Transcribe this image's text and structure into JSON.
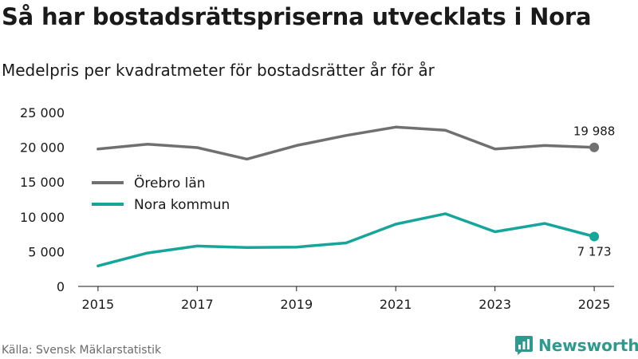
{
  "title": "Så har bostadsrättspriserna utvecklats i Nora",
  "subtitle": "Medelpris per kvadratmeter för bostadsrätter år för år",
  "source": "Källa: Svensk Mäklarstatistik",
  "brand": {
    "name": "Newsworthy",
    "logo_icon": "newsworthy-chart-icon",
    "color": "#2e9a8f"
  },
  "chart_data": {
    "type": "line",
    "title": "Så har bostadsrättspriserna utvecklats i Nora",
    "subtitle": "Medelpris per kvadratmeter för bostadsrätter år för år",
    "xlabel": "",
    "ylabel": "",
    "x": [
      2015,
      2016,
      2017,
      2018,
      2019,
      2020,
      2021,
      2022,
      2023,
      2024,
      2025
    ],
    "xlim": [
      2014.6,
      2025.4
    ],
    "ylim": [
      0,
      25000
    ],
    "x_ticks": [
      2015,
      2017,
      2019,
      2021,
      2023,
      2025
    ],
    "x_tick_labels": [
      "2015",
      "2017",
      "2019",
      "2021",
      "2023",
      "2025"
    ],
    "y_ticks": [
      0,
      5000,
      10000,
      15000,
      20000,
      25000
    ],
    "y_tick_labels": [
      "0",
      "5 000",
      "10 000",
      "15 000",
      "20 000",
      "25 000"
    ],
    "grid": false,
    "legend_position": "left",
    "series": [
      {
        "name": "Örebro län",
        "color": "#707070",
        "values": [
          19750,
          20450,
          19950,
          18300,
          20250,
          21700,
          22900,
          22450,
          19750,
          20250,
          19988
        ],
        "end_label": "19 988"
      },
      {
        "name": "Nora kommun",
        "color": "#16a59a",
        "values": [
          2950,
          4800,
          5800,
          5600,
          5650,
          6250,
          8950,
          10450,
          7850,
          9050,
          7173
        ],
        "end_label": "7 173"
      }
    ]
  }
}
